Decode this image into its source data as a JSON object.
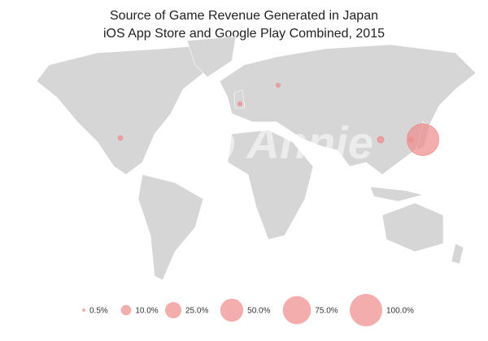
{
  "chart_data": {
    "type": "bubble_map",
    "title": "Source of Game Revenue Generated in Japan",
    "subtitle": "iOS App Store and Google Play Combined, 2015",
    "watermark": "App Annie",
    "values": [
      95,
      2,
      1.5,
      1.5,
      4,
      2
    ],
    "color": "#f08a8a",
    "size_legend": [
      {
        "value": 0.5,
        "label": "0.5%"
      },
      {
        "value": 10,
        "label": "10.0%"
      },
      {
        "value": 25,
        "label": "25.0%"
      },
      {
        "value": 50,
        "label": "50.0%"
      },
      {
        "value": 75,
        "label": "75.0%"
      },
      {
        "value": 100,
        "label": "100.0%"
      }
    ]
  }
}
